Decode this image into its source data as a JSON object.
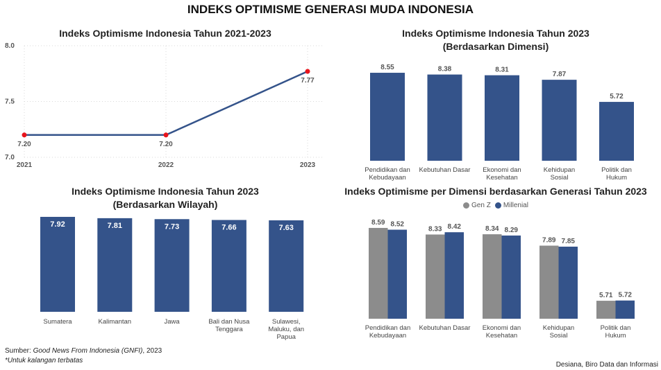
{
  "main_title": "INDEKS OPTIMISME GENERASI MUDA INDONESIA",
  "colors": {
    "primary": "#34538a",
    "secondary": "#8c8c8c",
    "marker": "#e8141c"
  },
  "footer": {
    "source_prefix": "Sumber: ",
    "source_italic": "Good News From Indonesia (GNFI)",
    "source_suffix": ", 2023",
    "note": "*Untuk kalangan terbatas",
    "credit": "Desiana, Biro Data dan Informasi"
  },
  "chart_data": [
    {
      "id": "trend",
      "type": "line",
      "title": "Indeks Optimisme Indonesia Tahun 2021-2023",
      "x": [
        "2021",
        "2022",
        "2023"
      ],
      "values": [
        7.2,
        7.2,
        7.77
      ],
      "labels": [
        "7.20",
        "7.20",
        "7.77"
      ],
      "ylim": [
        7.0,
        8.0
      ],
      "yticks": [
        "7.0",
        "7.5",
        "8.0"
      ],
      "grid": true,
      "xlabel": "",
      "ylabel": ""
    },
    {
      "id": "dimensi",
      "type": "bar",
      "title": "Indeks Optimisme Indonesia Tahun 2023",
      "subtitle": "(Berdasarkan Dimensi)",
      "categories": [
        [
          "Pendidikan dan",
          "Kebudayaan"
        ],
        [
          "Kebutuhan Dasar"
        ],
        [
          "Ekonomi dan",
          "Kesehatan"
        ],
        [
          "Kehidupan",
          "Sosial"
        ],
        [
          "Politik dan",
          "Hukum"
        ]
      ],
      "values": [
        8.55,
        8.38,
        8.31,
        7.87,
        5.72
      ],
      "labels": [
        "8.55",
        "8.38",
        "8.31",
        "7.87",
        "5.72"
      ],
      "ylim": [
        0,
        8.55
      ],
      "grid": false
    },
    {
      "id": "wilayah",
      "type": "bar",
      "title": "Indeks Optimisme Indonesia Tahun 2023",
      "subtitle": "(Berdasarkan Wilayah)",
      "categories": [
        [
          "Sumatera"
        ],
        [
          "Kalimantan"
        ],
        [
          "Jawa"
        ],
        [
          "Bali dan Nusa",
          "Tenggara"
        ],
        [
          "Sulawesi,",
          "Maluku, dan",
          "Papua"
        ]
      ],
      "values": [
        7.92,
        7.81,
        7.73,
        7.66,
        7.63
      ],
      "labels": [
        "7.92",
        "7.81",
        "7.73",
        "7.66",
        "7.63"
      ],
      "ylim": [
        0,
        7.92
      ],
      "grid": false
    },
    {
      "id": "generasi",
      "type": "bar",
      "title": "Indeks Optimisme per Dimensi berdasarkan Generasi Tahun 2023",
      "categories": [
        [
          "Pendidikan dan",
          "Kebudayaan"
        ],
        [
          "Kebutuhan Dasar"
        ],
        [
          "Ekonomi dan",
          "Kesehatan"
        ],
        [
          "Kehidupan",
          "Sosial"
        ],
        [
          "Politik dan",
          "Hukum"
        ]
      ],
      "series": [
        {
          "name": "Gen Z",
          "values": [
            8.59,
            8.33,
            8.34,
            7.89,
            5.71
          ],
          "labels": [
            "8.59",
            "8.33",
            "8.34",
            "7.89",
            "5.71"
          ],
          "color": "#8c8c8c"
        },
        {
          "name": "Millenial",
          "values": [
            8.52,
            8.42,
            8.29,
            7.85,
            5.72
          ],
          "labels": [
            "8.52",
            "8.42",
            "8.29",
            "7.85",
            "5.72"
          ],
          "color": "#34538a"
        }
      ],
      "legend": "top-center",
      "ylim": [
        5.0,
        8.59
      ],
      "grid": false
    }
  ]
}
